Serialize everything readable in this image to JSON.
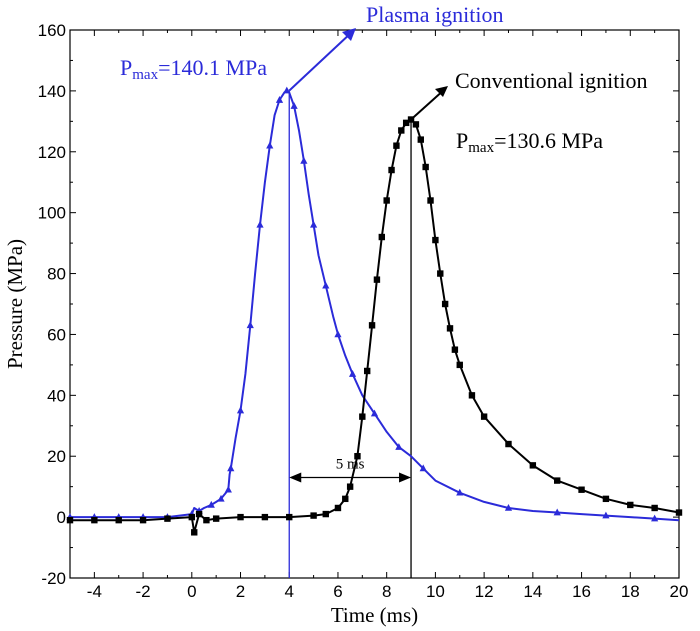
{
  "chart_data": {
    "type": "line",
    "xlabel": "Time (ms)",
    "ylabel": "Pressure (MPa)",
    "xlim": [
      -5,
      20
    ],
    "ylim": [
      -20,
      160
    ],
    "xticks": [
      -4,
      -2,
      0,
      2,
      4,
      6,
      8,
      10,
      12,
      14,
      16,
      18,
      20
    ],
    "yticks": [
      -20,
      0,
      20,
      40,
      60,
      80,
      100,
      120,
      140,
      160
    ],
    "grid": false,
    "series": [
      {
        "name": "Plasma ignition",
        "color": "#2b2bd9",
        "marker": "triangle",
        "x": [
          -5,
          -4.5,
          -4,
          -3.5,
          -3,
          -2.5,
          -2,
          -1.5,
          -1,
          -0.5,
          0,
          0.1,
          0.3,
          0.5,
          0.8,
          1.0,
          1.2,
          1.4,
          1.5,
          1.55,
          1.6,
          1.8,
          2.0,
          2.2,
          2.4,
          2.6,
          2.8,
          3.0,
          3.2,
          3.4,
          3.6,
          3.8,
          3.9,
          4.0,
          4.2,
          4.4,
          4.6,
          4.8,
          5.0,
          5.2,
          5.5,
          5.8,
          6.0,
          6.3,
          6.6,
          7.0,
          7.5,
          8.0,
          8.5,
          9.0,
          9.5,
          10,
          11,
          12,
          13,
          14,
          15,
          16,
          17,
          18,
          19,
          20
        ],
        "y": [
          0,
          0,
          0,
          0,
          0,
          0,
          0,
          0,
          0,
          0.5,
          1,
          3,
          2,
          3,
          4,
          5,
          6,
          8,
          9,
          14,
          16,
          26,
          35,
          47,
          63,
          80,
          96,
          110,
          122,
          132,
          137,
          139.5,
          140.1,
          139.5,
          135,
          127,
          117,
          106,
          96,
          86,
          76,
          66,
          60,
          53,
          47,
          40,
          34,
          28,
          23,
          20,
          16,
          12,
          8,
          5,
          3,
          2,
          1.5,
          1,
          0.5,
          0,
          -0.5,
          -1
        ]
      },
      {
        "name": "Conventional ignition",
        "color": "#000000",
        "marker": "square",
        "x": [
          -5,
          -4,
          -3,
          -2,
          -1,
          0,
          0.1,
          0.3,
          0.6,
          1,
          2,
          3,
          4,
          5,
          5.5,
          6,
          6.3,
          6.5,
          6.8,
          7.0,
          7.2,
          7.4,
          7.6,
          7.8,
          8.0,
          8.2,
          8.4,
          8.6,
          8.8,
          9.0,
          9.2,
          9.4,
          9.6,
          9.8,
          10.0,
          10.2,
          10.4,
          10.6,
          10.8,
          11.0,
          11.5,
          12,
          13,
          14,
          15,
          16,
          17,
          18,
          19,
          20
        ],
        "y": [
          -1,
          -1,
          -1,
          -1,
          -0.5,
          0,
          -5,
          1,
          -1,
          -0.5,
          0,
          0,
          0,
          0.5,
          1,
          3,
          6,
          10,
          20,
          33,
          48,
          63,
          78,
          92,
          104,
          114,
          122,
          127,
          129.5,
          130.6,
          129,
          124,
          115,
          104,
          91,
          80,
          70,
          62,
          55,
          50,
          40,
          33,
          24,
          17,
          12,
          9,
          6,
          4,
          3,
          1.5
        ]
      }
    ],
    "annotations": {
      "plasma_label": "Plasma ignition",
      "plasma_pmax_prefix": "P",
      "plasma_pmax_sub": "max",
      "plasma_pmax_value": "=140.1 MPa",
      "conv_label": "Conventional ignition",
      "conv_pmax_prefix": "P",
      "conv_pmax_sub": "max",
      "conv_pmax_value": "=130.6 MPa",
      "interval_label": "5 ms",
      "plasma_peak": [
        4.0,
        140.1
      ],
      "conv_peak": [
        9.0,
        130.6
      ]
    }
  }
}
